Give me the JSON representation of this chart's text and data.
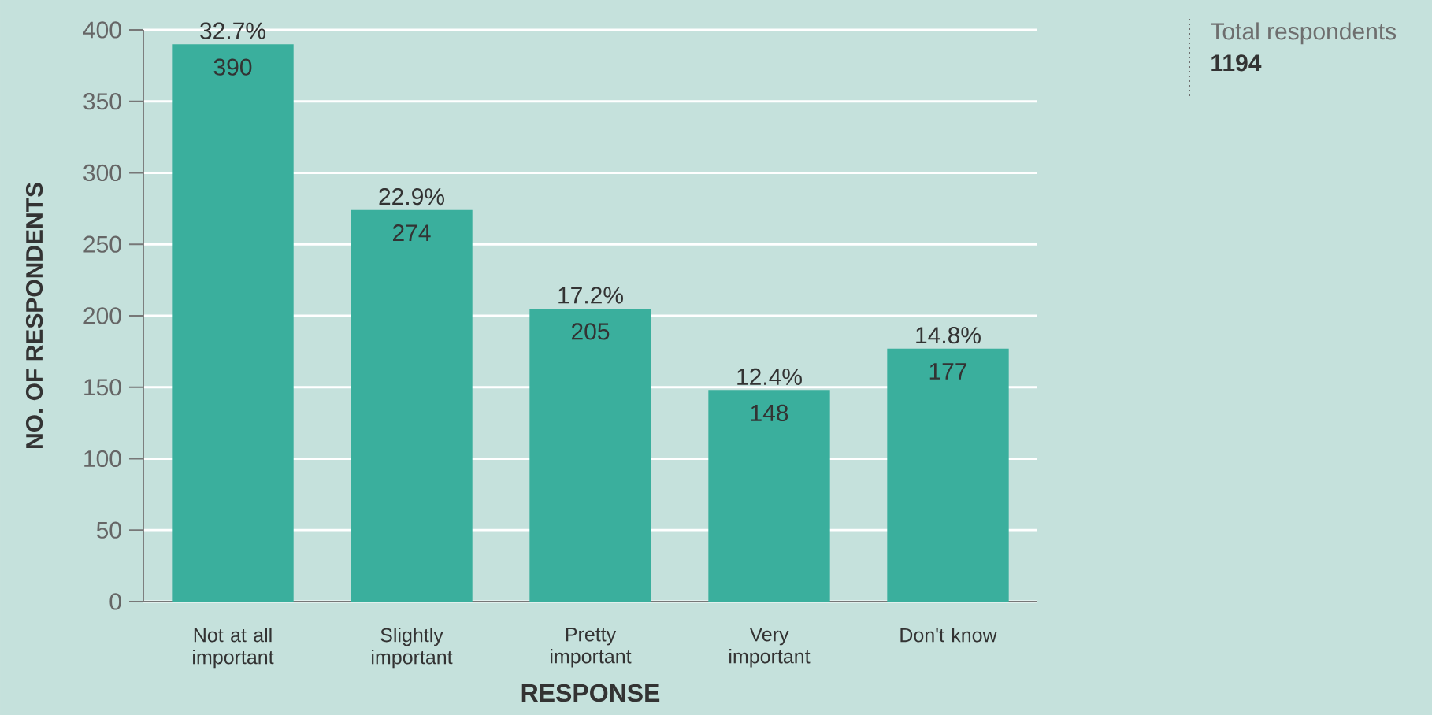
{
  "chart_data": {
    "type": "bar",
    "xlabel": "RESPONSE",
    "ylabel": "NO. OF RESPONDENTS",
    "categories": [
      "Not at all important",
      "Slightly important",
      "Pretty important",
      "Very important",
      "Don't know"
    ],
    "values": [
      390,
      274,
      205,
      148,
      177
    ],
    "color": "#3aaf9d",
    "ylim": [
      0,
      400
    ],
    "yticks": [
      0,
      50,
      100,
      150,
      200,
      250,
      300,
      350,
      400
    ],
    "grid": "y",
    "data_labels": true,
    "annotations": [
      {
        "text": "32.7%",
        "x": "Not at all important",
        "y": 390
      },
      {
        "text": "22.9%",
        "x": "Slightly important",
        "y": 274
      },
      {
        "text": "17.2%",
        "x": "Pretty important",
        "y": 205
      },
      {
        "text": "12.4%",
        "x": "Very important",
        "y": 148
      },
      {
        "text": "14.8%",
        "x": "Don't know",
        "y": 177
      },
      "Total respondents **1194**"
    ]
  }
}
